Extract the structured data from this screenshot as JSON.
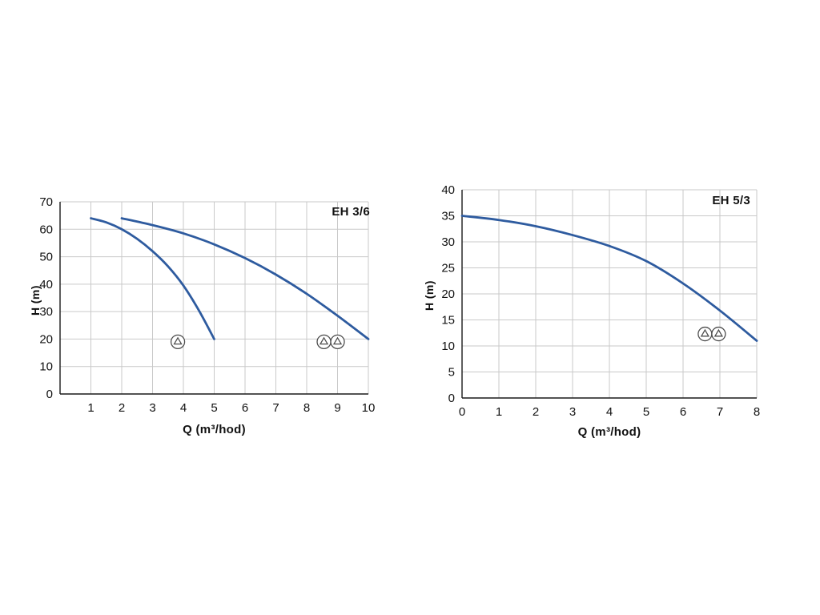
{
  "colors": {
    "curve": "#2e5b9f",
    "grid": "#c9c9c9",
    "axis": "#1a1a1a",
    "pump_icon": "#4d4d4d"
  },
  "chart_data": [
    {
      "type": "line",
      "title": "EH 3/6",
      "xlabel": "Q (m³/hod)",
      "ylabel": "H (m)",
      "xlim": [
        0,
        10
      ],
      "ylim": [
        0,
        70
      ],
      "xticks": [
        1,
        2,
        3,
        4,
        5,
        6,
        7,
        8,
        9,
        10
      ],
      "yticks": [
        0,
        10,
        20,
        30,
        40,
        50,
        60,
        70
      ],
      "grid": true,
      "legend": "none",
      "line_color": "#2e5b9f",
      "series": [
        {
          "name": "EH 3/6 single pump curve",
          "points": [
            [
              1,
              64
            ],
            [
              1.5,
              62.5
            ],
            [
              2,
              60
            ],
            [
              2.5,
              56.5
            ],
            [
              3,
              52
            ],
            [
              3.5,
              46.5
            ],
            [
              4,
              39.5
            ],
            [
              4.5,
              30.5
            ],
            [
              5,
              20
            ]
          ]
        },
        {
          "name": "EH 3/6 twin pump curve",
          "points": [
            [
              2,
              64
            ],
            [
              3,
              61.5
            ],
            [
              4,
              58.5
            ],
            [
              5,
              54.5
            ],
            [
              6,
              49.5
            ],
            [
              7,
              43.5
            ],
            [
              8,
              36.5
            ],
            [
              9,
              28.5
            ],
            [
              10,
              20
            ]
          ]
        }
      ],
      "pump_markers": [
        {
          "q": 3.82,
          "h": 19,
          "pumps": 1
        },
        {
          "q": 8.78,
          "h": 19,
          "pumps": 2
        }
      ]
    },
    {
      "type": "line",
      "title": "EH 5/3",
      "xlabel": "Q (m³/hod)",
      "ylabel": "H (m)",
      "xlim": [
        0,
        8
      ],
      "ylim": [
        0,
        40
      ],
      "xticks": [
        0,
        1,
        2,
        3,
        4,
        5,
        6,
        7,
        8
      ],
      "yticks": [
        0,
        5,
        10,
        15,
        20,
        25,
        30,
        35,
        40
      ],
      "grid": true,
      "legend": "none",
      "line_color": "#2e5b9f",
      "series": [
        {
          "name": "EH 5/3 pump curve",
          "points": [
            [
              0,
              35
            ],
            [
              1,
              34.2
            ],
            [
              2,
              33
            ],
            [
              3,
              31.3
            ],
            [
              4,
              29.2
            ],
            [
              5,
              26.3
            ],
            [
              6,
              22
            ],
            [
              7,
              16.8
            ],
            [
              8,
              11
            ]
          ]
        }
      ],
      "pump_markers": [
        {
          "q": 6.78,
          "h": 12.3,
          "pumps": 2
        }
      ]
    }
  ]
}
